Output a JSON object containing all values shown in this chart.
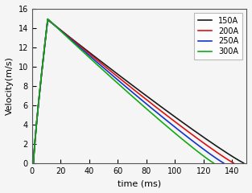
{
  "title": "",
  "xlabel": "time (ms)",
  "ylabel": "Velocity(m/s)",
  "xlim": [
    0,
    150
  ],
  "ylim": [
    0,
    16
  ],
  "yticks": [
    0,
    2,
    4,
    6,
    8,
    10,
    12,
    14,
    16
  ],
  "xticks": [
    0,
    20,
    40,
    60,
    80,
    100,
    120,
    140
  ],
  "series": [
    {
      "label": "150A",
      "color": "#1a1a1a",
      "peak_time": 11,
      "peak_val": 14.85,
      "end_time": 148.0
    },
    {
      "label": "200A",
      "color": "#dd1111",
      "peak_time": 11,
      "peak_val": 14.9,
      "end_time": 141.0
    },
    {
      "label": "250A",
      "color": "#1133cc",
      "peak_time": 11,
      "peak_val": 14.92,
      "end_time": 134.0
    },
    {
      "label": "300A",
      "color": "#11aa11",
      "peak_time": 11,
      "peak_val": 14.95,
      "end_time": 127.0
    }
  ],
  "rise_start_t": 1.0,
  "rise_start_v": 0.0,
  "legend_loc": "upper right",
  "linewidth": 1.2,
  "background_color": "#f5f5f5",
  "legend_fontsize": 7,
  "tick_fontsize": 7,
  "label_fontsize": 8
}
